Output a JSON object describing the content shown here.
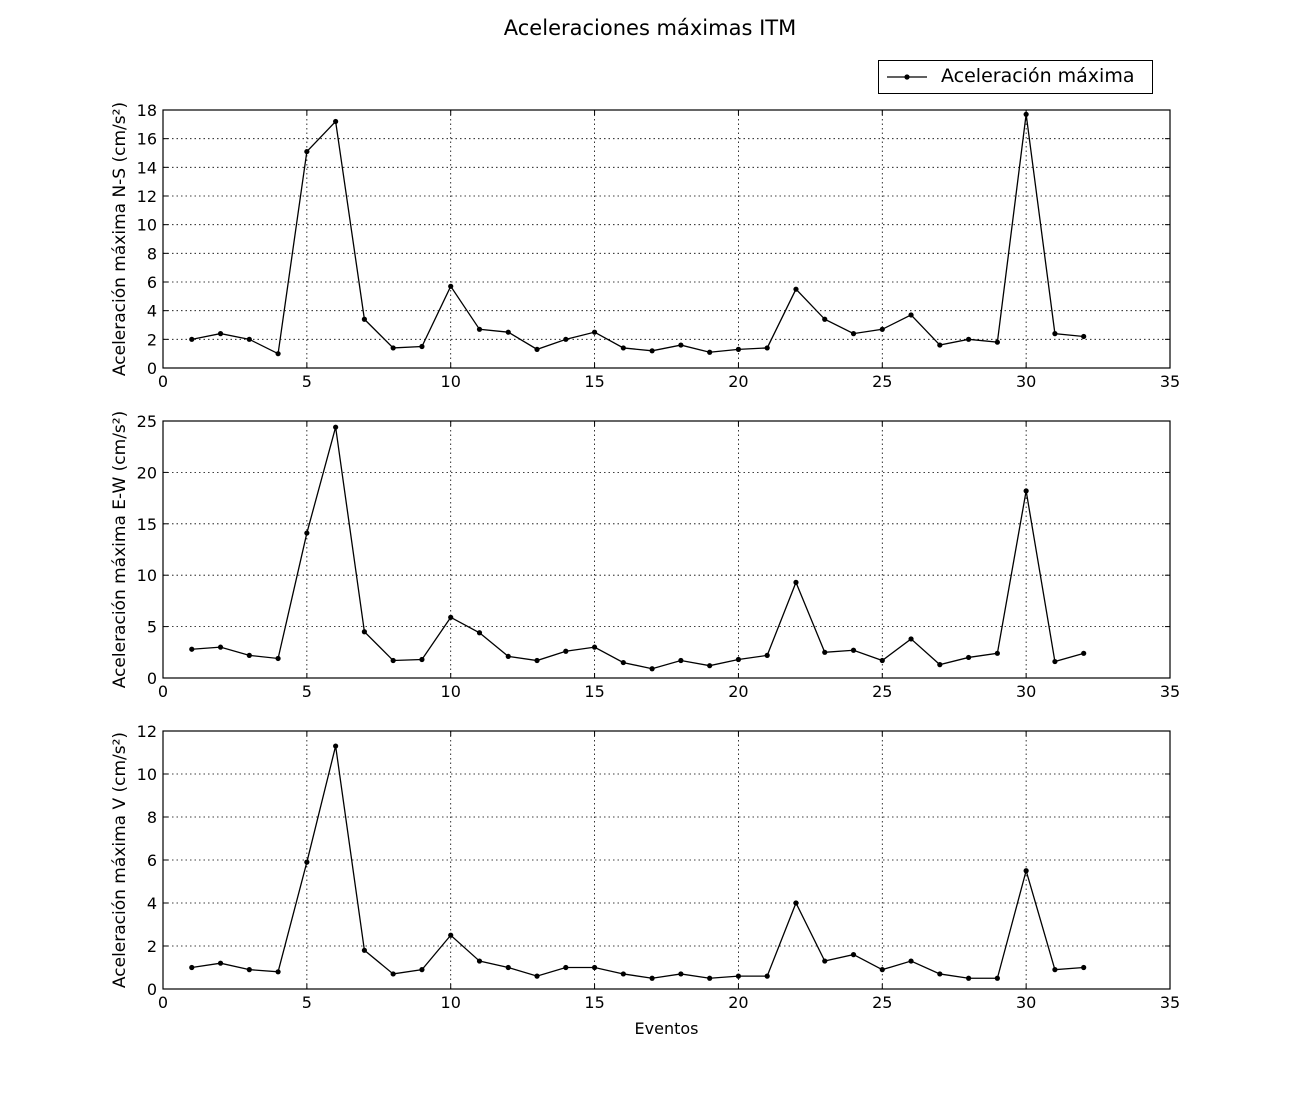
{
  "figure": {
    "title": "Aceleraciones máximas ITM",
    "legend": {
      "label": "Aceleración máxima",
      "placement": "upper-right, above top panel"
    },
    "line_color": "#000000",
    "grid_color": "#000000"
  },
  "chart_data": [
    {
      "type": "line",
      "title": "",
      "xlabel": "",
      "ylabel": "Aceleración máxima N-S (cm/s²)",
      "xlim": [
        0,
        35
      ],
      "ylim": [
        0,
        18
      ],
      "xticks": [
        0,
        5,
        10,
        15,
        20,
        25,
        30,
        35
      ],
      "yticks": [
        0,
        2,
        4,
        6,
        8,
        10,
        12,
        14,
        16,
        18
      ],
      "grid": true,
      "series": [
        {
          "name": "Aceleración máxima",
          "x": [
            1,
            2,
            3,
            4,
            5,
            6,
            7,
            8,
            9,
            10,
            11,
            12,
            13,
            14,
            15,
            16,
            17,
            18,
            19,
            20,
            21,
            22,
            23,
            24,
            25,
            26,
            27,
            28,
            29,
            30,
            31,
            32
          ],
          "values": [
            2.0,
            2.4,
            2.0,
            1.0,
            15.1,
            17.2,
            3.4,
            1.4,
            1.5,
            5.7,
            2.7,
            2.5,
            1.3,
            2.0,
            2.5,
            1.4,
            1.2,
            1.6,
            1.1,
            1.3,
            1.4,
            5.5,
            3.4,
            2.4,
            2.7,
            3.7,
            1.6,
            2.0,
            1.8,
            17.7,
            2.4,
            2.2
          ]
        }
      ]
    },
    {
      "type": "line",
      "title": "",
      "xlabel": "",
      "ylabel": "Aceleración máxima E-W (cm/s²)",
      "xlim": [
        0,
        35
      ],
      "ylim": [
        0,
        25
      ],
      "xticks": [
        0,
        5,
        10,
        15,
        20,
        25,
        30,
        35
      ],
      "yticks": [
        0,
        5,
        10,
        15,
        20,
        25
      ],
      "grid": true,
      "series": [
        {
          "name": "Aceleración máxima",
          "x": [
            1,
            2,
            3,
            4,
            5,
            6,
            7,
            8,
            9,
            10,
            11,
            12,
            13,
            14,
            15,
            16,
            17,
            18,
            19,
            20,
            21,
            22,
            23,
            24,
            25,
            26,
            27,
            28,
            29,
            30,
            31,
            32
          ],
          "values": [
            2.8,
            3.0,
            2.2,
            1.9,
            14.1,
            24.4,
            4.5,
            1.7,
            1.8,
            5.9,
            4.4,
            2.1,
            1.7,
            2.6,
            3.0,
            1.5,
            0.9,
            1.7,
            1.2,
            1.8,
            2.2,
            9.3,
            2.5,
            2.7,
            1.7,
            3.8,
            1.3,
            2.0,
            2.4,
            18.2,
            1.6,
            2.4
          ]
        }
      ]
    },
    {
      "type": "line",
      "title": "",
      "xlabel": "Eventos",
      "ylabel": "Aceleración máxima V (cm/s²)",
      "xlim": [
        0,
        35
      ],
      "ylim": [
        0,
        12
      ],
      "xticks": [
        0,
        5,
        10,
        15,
        20,
        25,
        30,
        35
      ],
      "yticks": [
        0,
        2,
        4,
        6,
        8,
        10,
        12
      ],
      "grid": true,
      "series": [
        {
          "name": "Aceleración máxima",
          "x": [
            1,
            2,
            3,
            4,
            5,
            6,
            7,
            8,
            9,
            10,
            11,
            12,
            13,
            14,
            15,
            16,
            17,
            18,
            19,
            20,
            21,
            22,
            23,
            24,
            25,
            26,
            27,
            28,
            29,
            30,
            31,
            32
          ],
          "values": [
            1.0,
            1.2,
            0.9,
            0.8,
            5.9,
            11.3,
            1.8,
            0.7,
            0.9,
            2.5,
            1.3,
            1.0,
            0.6,
            1.0,
            1.0,
            0.7,
            0.5,
            0.7,
            0.5,
            0.6,
            0.6,
            4.0,
            1.3,
            1.6,
            0.9,
            1.3,
            0.7,
            0.5,
            0.5,
            5.5,
            0.9,
            1.0
          ]
        }
      ]
    }
  ]
}
